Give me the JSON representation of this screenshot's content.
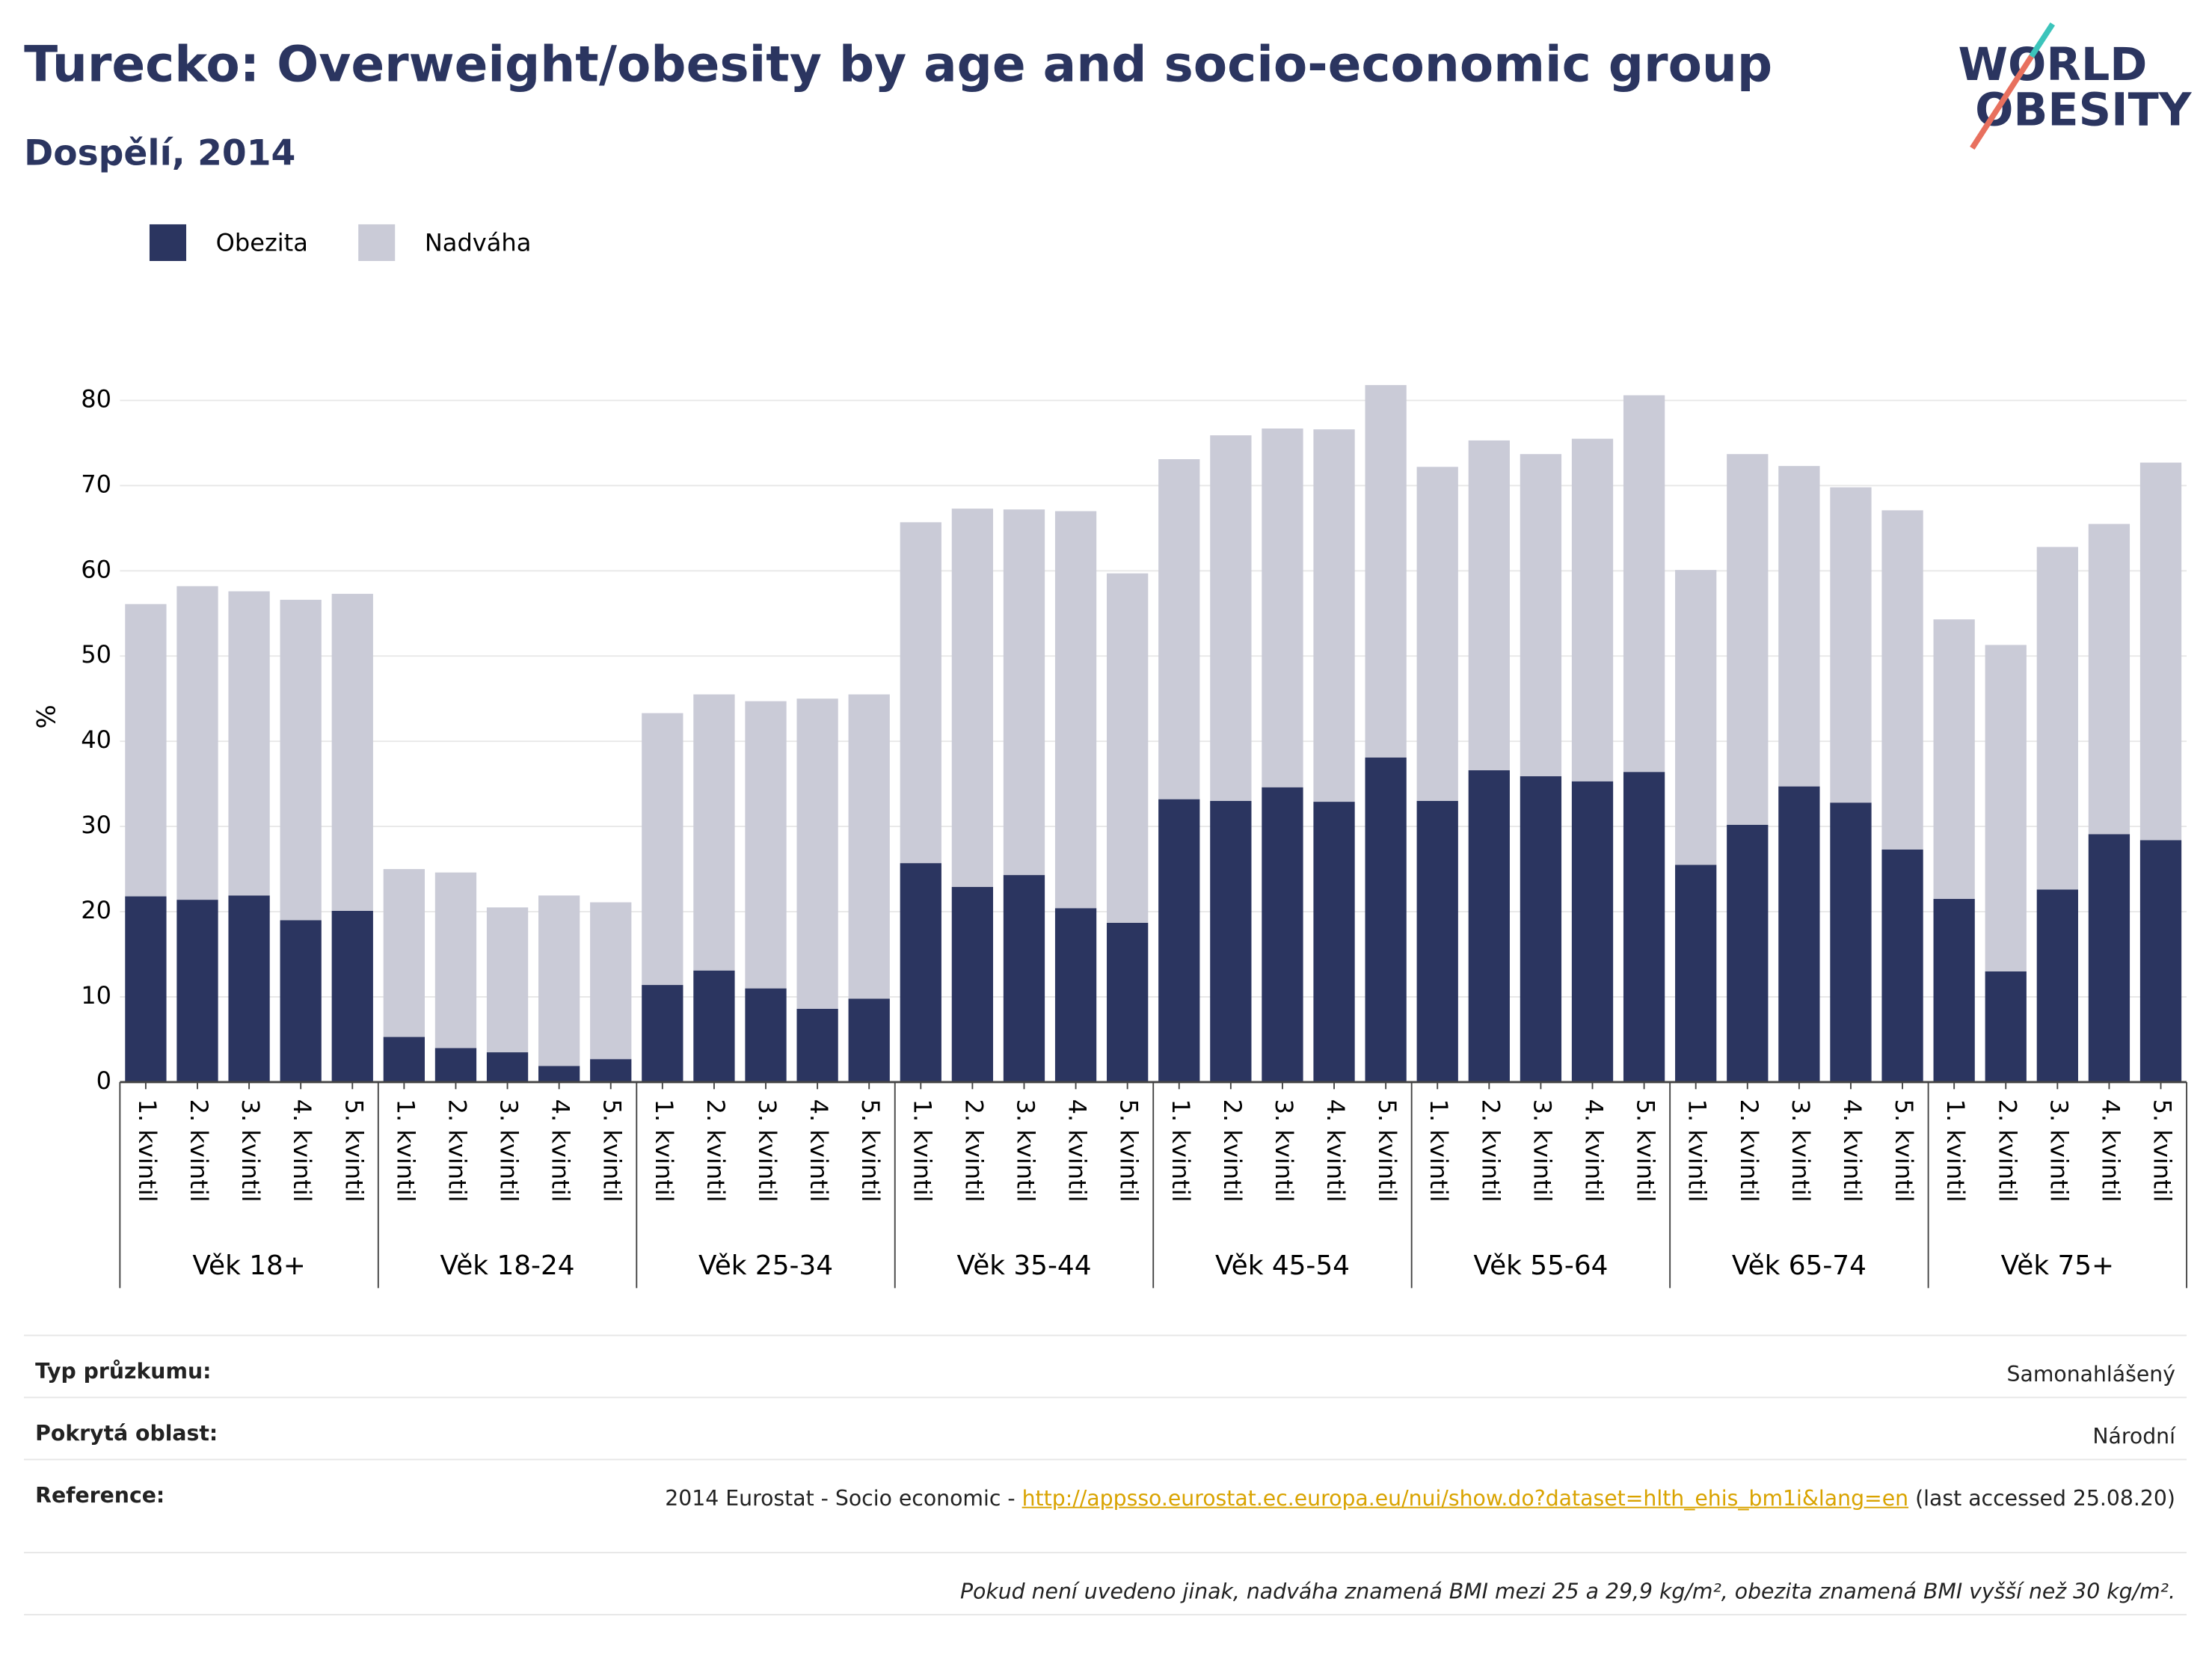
{
  "chart_data": {
    "type": "stacked_bar",
    "title": "Turecko: Overweight/obesity by age and socio-economic group",
    "subtitle": "Dospělí, 2014",
    "y_label": "%",
    "groups": [
      {
        "name": "Věk 18+",
        "categories": [
          "1. kvintil",
          "2. kvintil",
          "3. kvintil",
          "4. kvintil",
          "5. kvintil"
        ]
      },
      {
        "name": "Věk 18-24",
        "categories": [
          "1. kvintil",
          "2. kvintil",
          "3. kvintil",
          "4. kvintil",
          "5. kvintil"
        ]
      },
      {
        "name": "Věk 25-34",
        "categories": [
          "1. kvintil",
          "2. kvintil",
          "3. kvintil",
          "4. kvintil",
          "5. kvintil"
        ]
      },
      {
        "name": "Věk 35-44",
        "categories": [
          "1. kvintil",
          "2. kvintil",
          "3. kvintil",
          "4. kvintil",
          "5. kvintil"
        ]
      },
      {
        "name": "Věk 45-54",
        "categories": [
          "1. kvintil",
          "2. kvintil",
          "3. kvintil",
          "4. kvintil",
          "5. kvintil"
        ]
      },
      {
        "name": "Věk 55-64",
        "categories": [
          "1. kvintil",
          "2. kvintil",
          "3. kvintil",
          "4. kvintil",
          "5. kvintil"
        ]
      },
      {
        "name": "Věk 65-74",
        "categories": [
          "1. kvintil",
          "2. kvintil",
          "3. kvintil",
          "4. kvintil",
          "5. kvintil"
        ]
      },
      {
        "name": "Věk 75+",
        "categories": [
          "1. kvintil",
          "2. kvintil",
          "3. kvintil",
          "4. kvintil",
          "5. kvintil"
        ]
      }
    ],
    "series": [
      {
        "name": "Obezita",
        "color": "#2b3560",
        "values": [
          21.8,
          21.4,
          21.9,
          19.0,
          20.1,
          5.3,
          4.0,
          3.5,
          1.9,
          2.7,
          11.4,
          13.1,
          11.0,
          8.6,
          9.8,
          25.7,
          22.9,
          24.3,
          20.4,
          18.7,
          33.2,
          33.0,
          34.6,
          32.9,
          38.1,
          33.0,
          36.6,
          35.9,
          35.3,
          36.4,
          25.5,
          30.2,
          34.7,
          32.8,
          27.3,
          21.5,
          13.0,
          22.6,
          29.1,
          28.4
        ]
      },
      {
        "name": "Nadváha",
        "color": "#cacbd7",
        "values": [
          34.3,
          36.8,
          35.7,
          37.6,
          37.2,
          19.7,
          20.6,
          17.0,
          20.0,
          18.4,
          31.9,
          32.4,
          33.7,
          36.4,
          35.7,
          40.0,
          44.4,
          42.9,
          46.6,
          41.0,
          39.9,
          42.9,
          42.1,
          43.7,
          43.7,
          39.2,
          38.7,
          37.8,
          40.2,
          44.2,
          34.6,
          43.5,
          37.6,
          37.0,
          39.8,
          32.8,
          38.3,
          40.2,
          36.4,
          44.3
        ]
      }
    ],
    "ylim": [
      0,
      85
    ],
    "yticks": [
      0,
      10,
      20,
      30,
      40,
      50,
      60,
      70,
      80
    ],
    "grid": true,
    "legend": "top-left"
  },
  "logo": {
    "line1": "WORLD",
    "line2": "OBESITY"
  },
  "footer": {
    "rows": [
      {
        "label": "Typ průzkumu:",
        "value": "Samonahlášený"
      },
      {
        "label": "Pokrytá oblast:",
        "value": "Národní"
      }
    ],
    "reference": {
      "label": "Reference:",
      "text": "2014 Eurostat - Socio economic -",
      "link": "http://appsso.eurostat.ec.europa.eu/nui/show.do?dataset=hlth_ehis_bm1i&lang=en",
      "suffix": "(last accessed 25.08.20)"
    },
    "note": "Pokud není uvedeno jinak, nadváha znamená BMI mezi 25 a 29,9 kg/m², obezita znamená BMI vyšší než 30 kg/m²."
  }
}
